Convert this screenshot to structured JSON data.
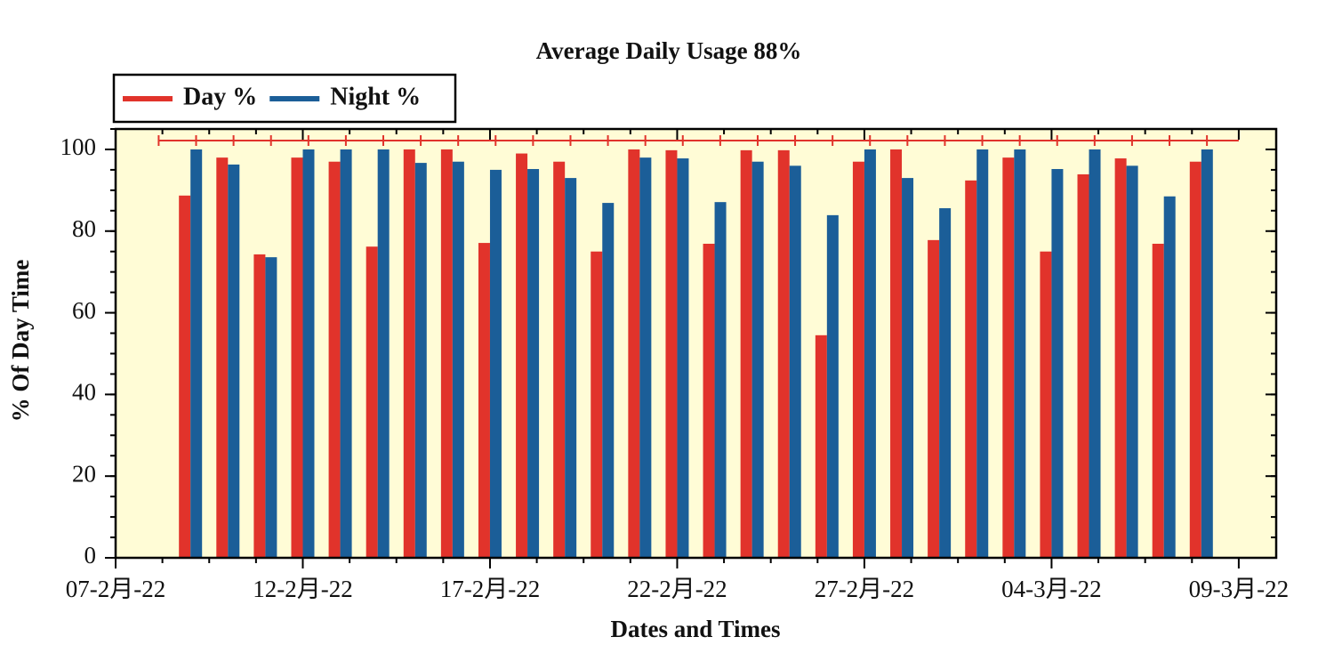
{
  "chart_data": {
    "type": "bar",
    "title": "Average Daily Usage 88%",
    "x_label": "Dates and Times",
    "y_label": "% Of Day Time",
    "x": [
      "09-2月-22",
      "10-2月-22",
      "11-2月-22",
      "12-2月-22",
      "13-2月-22",
      "14-2月-22",
      "15-2月-22",
      "16-2月-22",
      "17-2月-22",
      "18-2月-22",
      "19-2月-22",
      "20-2月-22",
      "21-2月-22",
      "22-2月-22",
      "23-2月-22",
      "24-2月-22",
      "25-2月-22",
      "26-2月-22",
      "27-2月-22",
      "28-2月-22",
      "01-3月-22",
      "02-3月-22",
      "03-3月-22",
      "04-3月-22",
      "05-3月-22",
      "06-3月-22",
      "07-3月-22",
      "08-3月-22"
    ],
    "series": [
      {
        "name": "Day %",
        "color": "#e1332b",
        "values": [
          88.7,
          98,
          74.3,
          98,
          97,
          76.2,
          100,
          100,
          77.1,
          99,
          97,
          75,
          100,
          99.8,
          76.9,
          99.8,
          99.8,
          54.5,
          97,
          100,
          77.8,
          92.4,
          98,
          75,
          93.9,
          97.8,
          76.9,
          97
        ]
      },
      {
        "name": "Night %",
        "color": "#1b5e98",
        "values": [
          100,
          96.3,
          73.6,
          100,
          100,
          100,
          96.7,
          97,
          95,
          95.2,
          93,
          86.9,
          98,
          97.8,
          87.1,
          97,
          96,
          83.9,
          100,
          93,
          85.6,
          100,
          100,
          95.2,
          100,
          96,
          88.5,
          100
        ]
      }
    ],
    "xlim": [
      "07-2月-22",
      "10-3月-22"
    ],
    "xticks": [
      "07-2月-22",
      "12-2月-22",
      "17-2月-22",
      "22-2月-22",
      "27-2月-22",
      "04-3月-22",
      "09-3月-22"
    ],
    "ylim": [
      0,
      105
    ],
    "yticks": [
      0,
      20,
      40,
      60,
      80,
      100
    ],
    "legend": "top-left",
    "background": "#fffcd6"
  }
}
